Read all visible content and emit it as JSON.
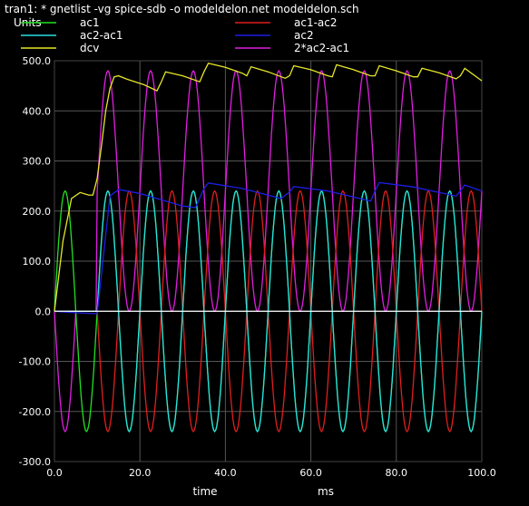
{
  "window": {
    "title": "tran1: * gnetlist -vg spice-sdb -o modeldelon.net modeldelon.sch",
    "units_label": "Units"
  },
  "chart_data": {
    "type": "line",
    "xlabel": "time",
    "xunits": "ms",
    "xlim": [
      0,
      100
    ],
    "ylim": [
      -300,
      500
    ],
    "xticks": [
      "0.0",
      "20.0",
      "40.0",
      "60.0",
      "80.0",
      "100.0"
    ],
    "yticks": [
      "500.0",
      "400.0",
      "300.0",
      "200.0",
      "100.0",
      "0.0",
      "-100.0",
      "-200.0",
      "-300.0"
    ],
    "grid": true,
    "legend_position": "top",
    "series": [
      {
        "name": "ac1",
        "color": "#22e022"
      },
      {
        "name": "ac1-ac2",
        "color": "#e01e1e"
      },
      {
        "name": "ac2-ac1",
        "color": "#28e0e0"
      },
      {
        "name": "ac2",
        "color": "#1e1ee6"
      },
      {
        "name": "dcv",
        "color": "#e6e628"
      },
      {
        "name": "2*ac2-ac1",
        "color": "#e01ee0"
      }
    ],
    "amplitude": 240,
    "period_ms": 10,
    "dcv_points": [
      [
        0,
        0
      ],
      [
        2,
        140
      ],
      [
        4,
        225
      ],
      [
        6,
        237
      ],
      [
        8,
        232
      ],
      [
        9,
        232
      ],
      [
        10,
        265
      ],
      [
        11,
        330
      ],
      [
        12,
        400
      ],
      [
        13,
        445
      ],
      [
        14,
        468
      ],
      [
        15,
        470
      ],
      [
        17,
        463
      ],
      [
        21,
        452
      ],
      [
        24,
        440
      ],
      [
        25,
        458
      ],
      [
        26,
        478
      ],
      [
        30,
        470
      ],
      [
        34,
        458
      ],
      [
        35,
        478
      ],
      [
        36,
        495
      ],
      [
        40,
        487
      ],
      [
        44,
        475
      ],
      [
        45,
        470
      ],
      [
        46,
        488
      ],
      [
        50,
        478
      ],
      [
        54,
        465
      ],
      [
        55,
        470
      ],
      [
        56,
        490
      ],
      [
        60,
        482
      ],
      [
        64,
        470
      ],
      [
        65,
        468
      ],
      [
        66,
        492
      ],
      [
        70,
        482
      ],
      [
        74,
        470
      ],
      [
        75,
        470
      ],
      [
        76,
        490
      ],
      [
        80,
        480
      ],
      [
        84,
        468
      ],
      [
        85,
        468
      ],
      [
        86,
        485
      ],
      [
        90,
        476
      ],
      [
        94,
        464
      ],
      [
        95,
        470
      ],
      [
        96,
        485
      ],
      [
        100,
        460
      ]
    ],
    "ac2_points": [
      [
        0,
        0
      ],
      [
        5,
        -3
      ],
      [
        10,
        -5
      ],
      [
        13,
        230
      ],
      [
        15,
        243
      ],
      [
        20,
        235
      ],
      [
        30,
        210
      ],
      [
        33,
        207
      ],
      [
        35,
        245
      ],
      [
        36,
        256
      ],
      [
        44,
        245
      ],
      [
        53,
        225
      ],
      [
        55,
        238
      ],
      [
        56,
        249
      ],
      [
        64,
        240
      ],
      [
        74,
        220
      ],
      [
        75,
        240
      ],
      [
        76,
        257
      ],
      [
        84,
        248
      ],
      [
        94,
        230
      ],
      [
        95,
        240
      ],
      [
        96,
        252
      ],
      [
        100,
        240
      ]
    ]
  }
}
